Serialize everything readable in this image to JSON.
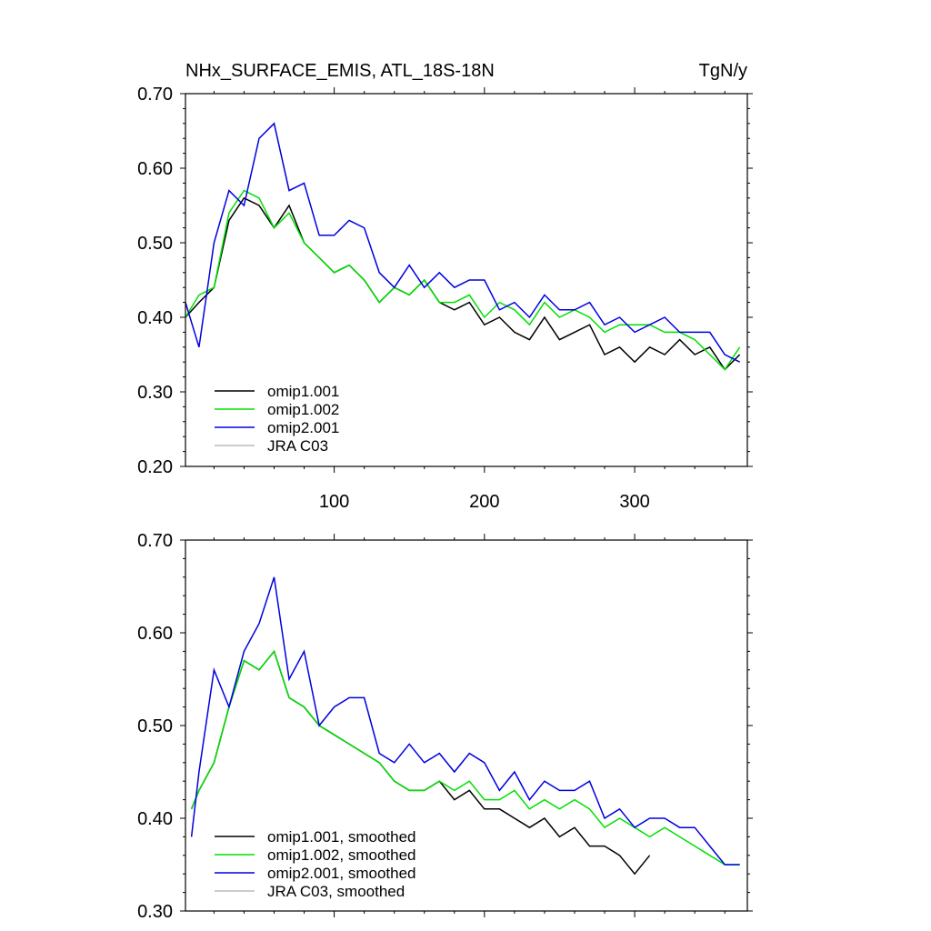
{
  "figure": {
    "title_left": "NHx_SURFACE_EMIS, ATL_18S-18N",
    "title_right": "TgN/y"
  },
  "chart_data": [
    {
      "type": "line",
      "panel": "top",
      "xlim": [
        1,
        375
      ],
      "ylim": [
        0.2,
        0.7
      ],
      "xticks": [
        100,
        200,
        300
      ],
      "yticks": [
        0.2,
        0.3,
        0.4,
        0.5,
        0.6,
        0.7
      ],
      "ytick_labels": [
        "0.20",
        "0.30",
        "0.40",
        "0.50",
        "0.60",
        "0.70"
      ],
      "grid": false,
      "legend_position": "bottom-left",
      "series": [
        {
          "name": "omip1.001",
          "color": "#000000",
          "x": [
            1,
            10,
            20,
            30,
            40,
            50,
            60,
            70,
            80,
            90,
            100,
            110,
            120,
            130,
            140,
            150,
            160,
            170,
            180,
            190,
            200,
            210,
            220,
            230,
            240,
            250,
            260,
            270,
            280,
            290,
            300,
            310,
            320,
            330,
            340,
            350,
            360,
            370
          ],
          "y": [
            0.4,
            0.42,
            0.44,
            0.53,
            0.56,
            0.55,
            0.52,
            0.55,
            0.5,
            0.48,
            0.46,
            0.47,
            0.45,
            0.42,
            0.44,
            0.43,
            0.45,
            0.42,
            0.41,
            0.42,
            0.39,
            0.4,
            0.38,
            0.37,
            0.4,
            0.37,
            0.38,
            0.39,
            0.35,
            0.36,
            0.34,
            0.36,
            0.35,
            0.37,
            0.35,
            0.36,
            0.33,
            0.35
          ]
        },
        {
          "name": "omip1.002",
          "color": "#00e000",
          "x": [
            1,
            10,
            20,
            30,
            40,
            50,
            60,
            70,
            80,
            90,
            100,
            110,
            120,
            130,
            140,
            150,
            160,
            170,
            180,
            190,
            200,
            210,
            220,
            230,
            240,
            250,
            260,
            270,
            280,
            290,
            300,
            310,
            320,
            330,
            340,
            350,
            360,
            370
          ],
          "y": [
            0.4,
            0.43,
            0.44,
            0.54,
            0.57,
            0.56,
            0.52,
            0.54,
            0.5,
            0.48,
            0.46,
            0.47,
            0.45,
            0.42,
            0.44,
            0.43,
            0.45,
            0.42,
            0.42,
            0.43,
            0.4,
            0.42,
            0.41,
            0.39,
            0.42,
            0.4,
            0.41,
            0.4,
            0.38,
            0.39,
            0.39,
            0.39,
            0.38,
            0.38,
            0.37,
            0.35,
            0.33,
            0.36
          ]
        },
        {
          "name": "omip2.001",
          "color": "#0000e0",
          "x": [
            1,
            10,
            20,
            30,
            40,
            50,
            60,
            70,
            80,
            90,
            100,
            110,
            120,
            130,
            140,
            150,
            160,
            170,
            180,
            190,
            200,
            210,
            220,
            230,
            240,
            250,
            260,
            270,
            280,
            290,
            300,
            310,
            320,
            330,
            340,
            350,
            360,
            370
          ],
          "y": [
            0.42,
            0.36,
            0.5,
            0.57,
            0.55,
            0.64,
            0.66,
            0.57,
            0.58,
            0.51,
            0.51,
            0.53,
            0.52,
            0.46,
            0.44,
            0.47,
            0.44,
            0.46,
            0.44,
            0.45,
            0.45,
            0.41,
            0.42,
            0.4,
            0.43,
            0.41,
            0.41,
            0.42,
            0.39,
            0.4,
            0.38,
            0.39,
            0.4,
            0.38,
            0.38,
            0.38,
            0.35,
            0.34
          ]
        },
        {
          "name": "JRA C03",
          "color": "#bbbbbb",
          "x": [],
          "y": []
        }
      ]
    },
    {
      "type": "line",
      "panel": "bottom",
      "xlim": [
        1,
        375
      ],
      "ylim": [
        0.3,
        0.7
      ],
      "xticks": [
        100,
        200,
        300
      ],
      "yticks": [
        0.3,
        0.4,
        0.5,
        0.6,
        0.7
      ],
      "ytick_labels": [
        "0.30",
        "0.40",
        "0.50",
        "0.60",
        "0.70"
      ],
      "grid": false,
      "legend_position": "bottom-left",
      "series": [
        {
          "name": "omip1.001, smoothed",
          "color": "#000000",
          "x": [
            5,
            10,
            20,
            30,
            40,
            50,
            60,
            70,
            80,
            90,
            100,
            110,
            120,
            130,
            140,
            150,
            160,
            170,
            180,
            190,
            200,
            210,
            220,
            230,
            240,
            250,
            260,
            270,
            280,
            290,
            300,
            310
          ],
          "y": [
            0.41,
            0.43,
            0.46,
            0.52,
            0.57,
            0.56,
            0.58,
            0.53,
            0.52,
            0.5,
            0.49,
            0.48,
            0.47,
            0.46,
            0.44,
            0.43,
            0.43,
            0.44,
            0.42,
            0.43,
            0.41,
            0.41,
            0.4,
            0.39,
            0.4,
            0.38,
            0.39,
            0.37,
            0.37,
            0.36,
            0.34,
            0.36
          ]
        },
        {
          "name": "omip1.002, smoothed",
          "color": "#00e000",
          "x": [
            5,
            10,
            20,
            30,
            40,
            50,
            60,
            70,
            80,
            90,
            100,
            110,
            120,
            130,
            140,
            150,
            160,
            170,
            180,
            190,
            200,
            210,
            220,
            230,
            240,
            250,
            260,
            270,
            280,
            290,
            300,
            310,
            320,
            330,
            340,
            350,
            360,
            370
          ],
          "y": [
            0.41,
            0.43,
            0.46,
            0.52,
            0.57,
            0.56,
            0.58,
            0.53,
            0.52,
            0.5,
            0.49,
            0.48,
            0.47,
            0.46,
            0.44,
            0.43,
            0.43,
            0.44,
            0.43,
            0.44,
            0.42,
            0.42,
            0.43,
            0.41,
            0.42,
            0.41,
            0.42,
            0.41,
            0.39,
            0.4,
            0.39,
            0.38,
            0.39,
            0.38,
            0.37,
            0.36,
            0.35,
            0.35
          ]
        },
        {
          "name": "omip2.001, smoothed",
          "color": "#0000e0",
          "x": [
            5,
            10,
            20,
            30,
            40,
            50,
            60,
            70,
            80,
            90,
            100,
            110,
            120,
            130,
            140,
            150,
            160,
            170,
            180,
            190,
            200,
            210,
            220,
            230,
            240,
            250,
            260,
            270,
            280,
            290,
            300,
            310,
            320,
            330,
            340,
            350,
            360,
            370
          ],
          "y": [
            0.38,
            0.45,
            0.56,
            0.52,
            0.58,
            0.61,
            0.66,
            0.55,
            0.58,
            0.5,
            0.52,
            0.53,
            0.53,
            0.47,
            0.46,
            0.48,
            0.46,
            0.47,
            0.45,
            0.47,
            0.46,
            0.43,
            0.45,
            0.42,
            0.44,
            0.43,
            0.43,
            0.44,
            0.4,
            0.41,
            0.39,
            0.4,
            0.4,
            0.39,
            0.39,
            0.37,
            0.35,
            0.35
          ]
        },
        {
          "name": "JRA C03, smoothed",
          "color": "#bbbbbb",
          "x": [],
          "y": []
        }
      ]
    }
  ]
}
